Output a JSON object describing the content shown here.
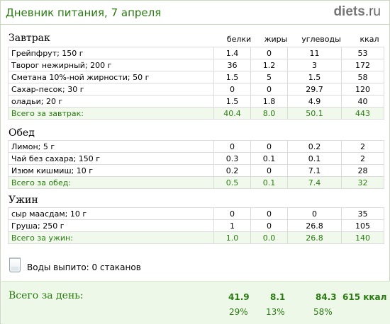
{
  "header": {
    "title": "Дневник питания, 7 апреля",
    "logo_main": "diets",
    "logo_tld": ".ru"
  },
  "columns": {
    "proteins": "белки",
    "fats": "жиры",
    "carbs": "углеводы",
    "kcal": "ккал"
  },
  "meals": [
    {
      "title": "Завтрак",
      "rows": [
        {
          "name": "Грейпфрут; 150 г",
          "proteins": "1.4",
          "fats": "0",
          "carbs": "11",
          "kcal": "53"
        },
        {
          "name": "Творог нежирный; 200 г",
          "proteins": "36",
          "fats": "1.2",
          "carbs": "3",
          "kcal": "172"
        },
        {
          "name": "Сметана 10%-ной жирности; 50 г",
          "proteins": "1.5",
          "fats": "5",
          "carbs": "1.5",
          "kcal": "58"
        },
        {
          "name": "Сахар-песок; 30 г",
          "proteins": "0",
          "fats": "0",
          "carbs": "29.7",
          "kcal": "120"
        },
        {
          "name": "оладьи; 20 г",
          "proteins": "1.5",
          "fats": "1.8",
          "carbs": "4.9",
          "kcal": "40"
        }
      ],
      "total": {
        "label": "Всего за завтрак:",
        "proteins": "40.4",
        "fats": "8.0",
        "carbs": "50.1",
        "kcal": "443"
      }
    },
    {
      "title": "Обед",
      "rows": [
        {
          "name": "Лимон; 5 г",
          "proteins": "0",
          "fats": "0",
          "carbs": "0.2",
          "kcal": "2"
        },
        {
          "name": "Чай без сахара; 150 г",
          "proteins": "0.3",
          "fats": "0.1",
          "carbs": "0.1",
          "kcal": "2"
        },
        {
          "name": "Изюм кишмиш; 10 г",
          "proteins": "0.2",
          "fats": "0",
          "carbs": "7.1",
          "kcal": "28"
        }
      ],
      "total": {
        "label": "Всего за обед:",
        "proteins": "0.5",
        "fats": "0.1",
        "carbs": "7.4",
        "kcal": "32"
      }
    },
    {
      "title": "Ужин",
      "rows": [
        {
          "name": "сыр маасдам; 10 г",
          "proteins": "0",
          "fats": "0",
          "carbs": "0",
          "kcal": "35"
        },
        {
          "name": "Груша; 250 г",
          "proteins": "1",
          "fats": "0",
          "carbs": "26.8",
          "kcal": "105"
        }
      ],
      "total": {
        "label": "Всего за ужин:",
        "proteins": "1.0",
        "fats": "0.0",
        "carbs": "26.8",
        "kcal": "140"
      }
    }
  ],
  "water": {
    "label": "Воды выпито: 0 стаканов",
    "icon": "glass-icon"
  },
  "day_total": {
    "label": "Всего за день:",
    "proteins": "41.9",
    "fats": "8.1",
    "carbs": "84.3",
    "kcal": "615 ккал",
    "proteins_pct": "29%",
    "fats_pct": "13%",
    "carbs_pct": "58%"
  },
  "colors": {
    "accent": "#2a7a12",
    "total_bg": "#f1f8ec",
    "day_bg": "#eef8e8"
  }
}
